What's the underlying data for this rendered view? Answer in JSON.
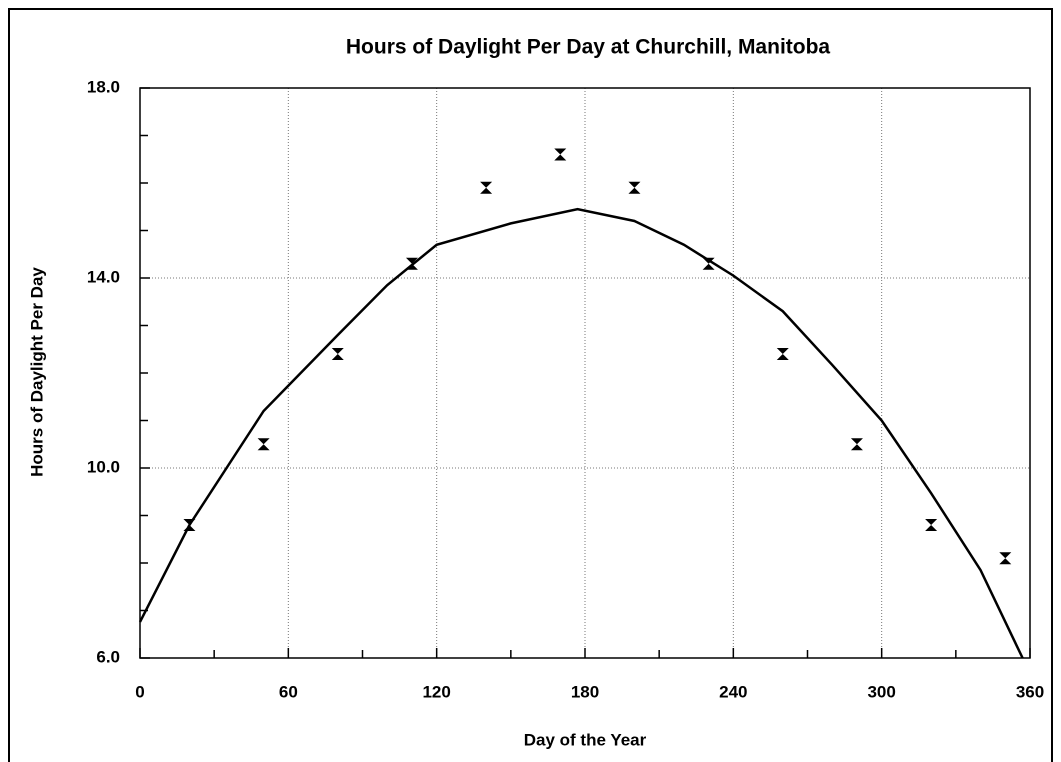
{
  "chart_data": {
    "type": "scatter",
    "title": "Hours of Daylight Per Day at Churchill, Manitoba",
    "x_label": "Day of the Year",
    "y_label": "Hours of Daylight Per Day",
    "xlim": [
      0,
      360
    ],
    "xticks": [
      0,
      60,
      120,
      180,
      240,
      300,
      360
    ],
    "xminorticks": [
      30,
      90,
      150,
      210,
      270,
      330
    ],
    "ylim": [
      6,
      18
    ],
    "yticks": [
      {
        "value": 6,
        "label": "6.0"
      },
      {
        "value": 10,
        "label": "10.0"
      },
      {
        "value": 14,
        "label": "14.0"
      },
      {
        "value": 18,
        "label": "18.0"
      }
    ],
    "yminorticks": [
      7,
      8,
      9,
      11,
      12,
      13,
      15,
      16,
      17
    ],
    "grid": true,
    "series": [
      {
        "type": "scatter",
        "marker": "hourglass",
        "color": "#000000",
        "x": [
          20,
          50,
          80,
          110,
          140,
          170,
          200,
          230,
          260,
          290,
          320,
          350
        ],
        "values": [
          8.8,
          10.5,
          12.4,
          14.3,
          15.9,
          16.6,
          15.9,
          14.3,
          12.4,
          10.5,
          8.8,
          8.1
        ]
      },
      {
        "type": "line",
        "color": "#000000",
        "x": [
          0,
          20,
          50,
          80,
          100,
          120,
          150,
          177,
          200,
          220,
          240,
          260,
          280,
          300,
          320,
          340,
          357
        ],
        "values": [
          6.76,
          8.8,
          11.2,
          12.8,
          13.85,
          14.7,
          15.15,
          15.45,
          15.2,
          14.7,
          14.05,
          13.3,
          12.17,
          11.0,
          9.47,
          7.85,
          6.0
        ]
      }
    ]
  }
}
